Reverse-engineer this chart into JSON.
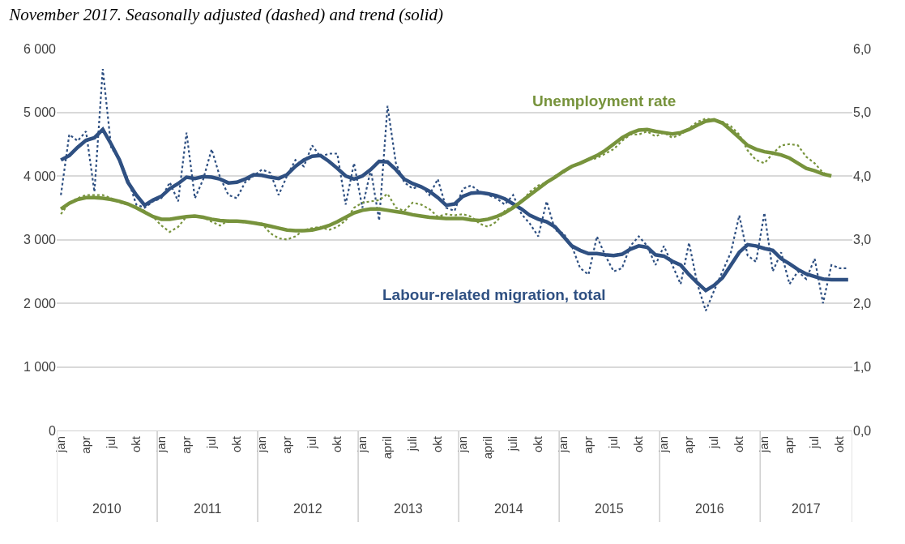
{
  "chart_data": {
    "type": "line",
    "title": "November 2017. Seasonally adjusted (dashed) and trend (solid)",
    "categories": [
      "jan",
      null,
      null,
      "apr",
      null,
      null,
      "jul",
      null,
      null,
      "okt",
      null,
      null,
      "jan",
      null,
      null,
      "apr",
      null,
      null,
      "jul",
      null,
      null,
      "okt",
      null,
      null,
      "jan",
      null,
      null,
      "apr",
      null,
      null,
      "jul",
      null,
      null,
      "okt",
      null,
      null,
      "jan",
      null,
      null,
      "april",
      null,
      null,
      "juli",
      null,
      null,
      "okt",
      null,
      null,
      "jan",
      null,
      null,
      "april",
      null,
      null,
      "juli",
      null,
      null,
      "okt",
      null,
      null,
      "jan",
      null,
      null,
      "apr",
      null,
      null,
      "jul",
      null,
      null,
      "okt",
      null,
      null,
      "jan",
      null,
      null,
      "apr",
      null,
      null,
      "jul",
      null,
      null,
      "okt",
      null,
      null,
      "jan",
      null,
      null,
      "apr",
      null,
      null,
      "jul",
      null,
      null,
      "okt",
      null
    ],
    "annotations": [
      "2010",
      "2011",
      "2012",
      "2013",
      "2014",
      "2015",
      "2016",
      "2017"
    ],
    "series": [
      {
        "color": "#2f5082",
        "line_style": "dotted",
        "values": [
          3700,
          4650,
          4550,
          4700,
          3750,
          5680,
          4450,
          4250,
          3950,
          3550,
          3500,
          3600,
          3650,
          3900,
          3600,
          4680,
          3650,
          3950,
          4420,
          3980,
          3700,
          3650,
          3900,
          4000,
          4100,
          4050,
          3700,
          4000,
          4250,
          4150,
          4480,
          4300,
          4350,
          4350,
          3550,
          4200,
          3500,
          4100,
          3300,
          5100,
          4200,
          3900,
          3800,
          3850,
          3700,
          3950,
          3500,
          3450,
          3800,
          3850,
          3750,
          3700,
          3650,
          3550,
          3700,
          3400,
          3250,
          3050,
          3600,
          3150,
          3100,
          2900,
          2550,
          2450,
          3050,
          2750,
          2500,
          2550,
          2900,
          3050,
          2900,
          2600,
          2900,
          2600,
          2300,
          2950,
          2300,
          1880,
          2200,
          2500,
          2800,
          3380,
          2750,
          2650,
          3420,
          2500,
          2800,
          2300,
          2500,
          2380,
          2700,
          2000,
          2600,
          2550,
          2550
        ]
      },
      {
        "name": "Labour-related migration, total",
        "color": "#2f5082",
        "line_style": "solid",
        "values": [
          4250,
          4320,
          4450,
          4560,
          4600,
          4730,
          4500,
          4250,
          3900,
          3700,
          3540,
          3620,
          3680,
          3800,
          3880,
          3980,
          3960,
          3990,
          3980,
          3950,
          3890,
          3900,
          3950,
          4020,
          4010,
          3980,
          3960,
          4020,
          4150,
          4250,
          4310,
          4320,
          4230,
          4120,
          4000,
          3950,
          4000,
          4100,
          4230,
          4220,
          4100,
          3950,
          3880,
          3830,
          3760,
          3660,
          3540,
          3560,
          3680,
          3730,
          3740,
          3720,
          3690,
          3640,
          3560,
          3480,
          3380,
          3320,
          3280,
          3200,
          3050,
          2900,
          2830,
          2780,
          2780,
          2760,
          2750,
          2770,
          2850,
          2900,
          2880,
          2760,
          2740,
          2660,
          2600,
          2450,
          2320,
          2200,
          2280,
          2400,
          2600,
          2800,
          2920,
          2900,
          2860,
          2830,
          2700,
          2620,
          2530,
          2460,
          2420,
          2380,
          2370,
          2370,
          2370
        ]
      },
      {
        "color": "#77933c",
        "line_style": "dotted",
        "axis": "y2",
        "values": [
          3.4,
          3.58,
          3.65,
          3.7,
          3.7,
          3.7,
          3.65,
          3.58,
          3.55,
          3.52,
          3.45,
          3.36,
          3.22,
          3.12,
          3.2,
          3.36,
          3.38,
          3.35,
          3.28,
          3.22,
          3.3,
          3.28,
          3.27,
          3.27,
          3.25,
          3.1,
          3.02,
          3.0,
          3.05,
          3.15,
          3.18,
          3.2,
          3.15,
          3.2,
          3.3,
          3.5,
          3.58,
          3.6,
          3.62,
          3.72,
          3.5,
          3.45,
          3.58,
          3.55,
          3.48,
          3.36,
          3.4,
          3.38,
          3.4,
          3.36,
          3.25,
          3.2,
          3.28,
          3.45,
          3.52,
          3.6,
          3.75,
          3.85,
          3.9,
          4.0,
          4.05,
          4.15,
          4.2,
          4.25,
          4.28,
          4.35,
          4.42,
          4.55,
          4.65,
          4.65,
          4.7,
          4.62,
          4.68,
          4.6,
          4.65,
          4.75,
          4.85,
          4.9,
          4.88,
          4.85,
          4.78,
          4.65,
          4.4,
          4.25,
          4.2,
          4.35,
          4.48,
          4.5,
          4.48,
          4.3,
          4.2,
          4.05,
          4.0,
          null,
          null
        ]
      },
      {
        "name": "Unemployment rate",
        "color": "#77933c",
        "line_style": "solid",
        "axis": "y2",
        "values": [
          3.48,
          3.57,
          3.63,
          3.66,
          3.66,
          3.65,
          3.63,
          3.6,
          3.56,
          3.5,
          3.43,
          3.36,
          3.32,
          3.32,
          3.34,
          3.36,
          3.37,
          3.35,
          3.32,
          3.3,
          3.29,
          3.29,
          3.28,
          3.26,
          3.24,
          3.21,
          3.18,
          3.15,
          3.14,
          3.14,
          3.15,
          3.18,
          3.22,
          3.28,
          3.35,
          3.42,
          3.46,
          3.48,
          3.48,
          3.46,
          3.44,
          3.42,
          3.39,
          3.37,
          3.35,
          3.34,
          3.33,
          3.33,
          3.33,
          3.31,
          3.3,
          3.32,
          3.36,
          3.42,
          3.5,
          3.6,
          3.7,
          3.8,
          3.9,
          3.98,
          4.07,
          4.15,
          4.2,
          4.26,
          4.32,
          4.4,
          4.5,
          4.6,
          4.67,
          4.72,
          4.73,
          4.7,
          4.68,
          4.66,
          4.68,
          4.73,
          4.8,
          4.86,
          4.88,
          4.83,
          4.72,
          4.6,
          4.48,
          4.42,
          4.38,
          4.36,
          4.33,
          4.28,
          4.2,
          4.12,
          4.08,
          4.03,
          4.0,
          null,
          null
        ]
      }
    ],
    "ylim": [
      0,
      6000
    ],
    "yticks": [
      0,
      {
        "value": 1000,
        "label": "1 000"
      },
      {
        "value": 2000,
        "label": "2 000"
      },
      {
        "value": 3000,
        "label": "3 000"
      },
      {
        "value": 4000,
        "label": "4 000"
      },
      {
        "value": 5000,
        "label": "5 000"
      },
      {
        "value": 6000,
        "label": "6 000"
      }
    ],
    "y2lim": [
      0,
      6
    ],
    "y2ticks": [
      {
        "value": 0,
        "label": "0,0"
      },
      {
        "value": 1,
        "label": "1,0"
      },
      {
        "value": 2,
        "label": "2,0"
      },
      {
        "value": 3,
        "label": "3,0"
      },
      {
        "value": 4,
        "label": "4,0"
      },
      {
        "value": 5,
        "label": "5,0"
      },
      {
        "value": 6,
        "label": "6,0"
      }
    ],
    "grid": "y",
    "legend": false,
    "marker": "none"
  }
}
